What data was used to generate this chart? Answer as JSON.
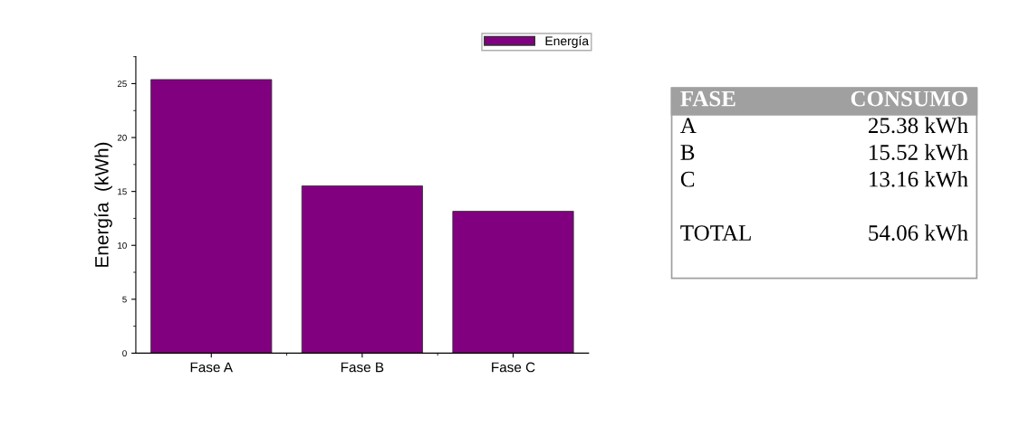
{
  "chart_data": [
    {
      "type": "bar",
      "ylabel": "Energía  (kWh)",
      "categories": [
        "Fase A",
        "Fase B",
        "Fase C"
      ],
      "series": [
        {
          "name": "Energía",
          "color": "#800080",
          "values": [
            25.38,
            15.52,
            13.16
          ]
        }
      ],
      "ylim": [
        0,
        27.3
      ],
      "yticks": [
        0,
        5,
        10,
        15,
        20,
        25
      ],
      "legend": "top right",
      "grid": false
    },
    {
      "type": "other",
      "annotations": [
        "FASE",
        "CONSUMO",
        "A",
        "25.38 kWh",
        "B",
        "15.52 kWh",
        "C",
        "13.16 kWh",
        "TOTAL",
        "54.06 kWh"
      ]
    }
  ]
}
